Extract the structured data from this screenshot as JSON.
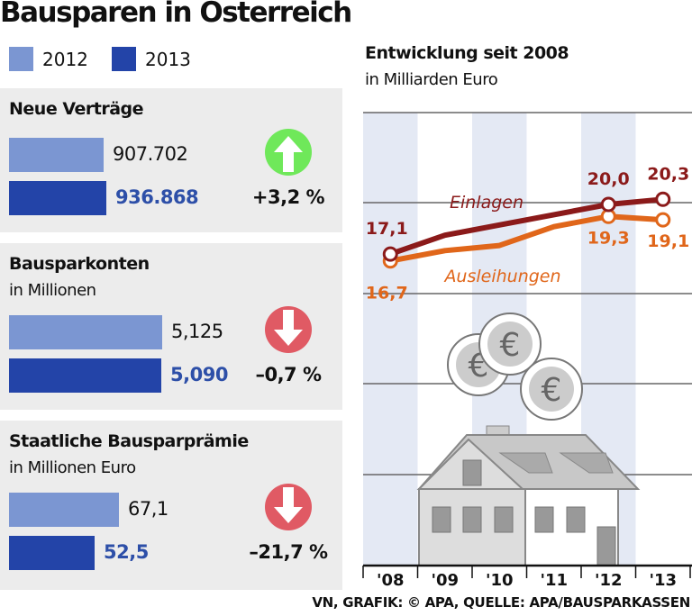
{
  "title": "Bausparen in Österreich",
  "legend": [
    {
      "label": "2012",
      "color": "#7b96d2"
    },
    {
      "label": "2013",
      "color": "#2344a8"
    }
  ],
  "panels": [
    {
      "heading": "Neue Verträge",
      "subtitle": "",
      "v2012": 907702,
      "v2013": 936868,
      "label2012": "907.702",
      "label2013": "936.868",
      "change": "+3,2 %",
      "direction": "up",
      "arrow_color": "#6fe85a"
    },
    {
      "heading": "Bausparkonten",
      "subtitle": "in Millionen",
      "v2012": 5.125,
      "v2013": 5.09,
      "label2012": "5,125",
      "label2013": "5,090",
      "change": "–0,7 %",
      "direction": "down",
      "arrow_color": "#e05a64"
    },
    {
      "heading": "Staatliche Bausparprämie",
      "subtitle": "in Millionen Euro",
      "v2012": 67.1,
      "v2013": 52.5,
      "label2012": "67,1",
      "label2013": "52,5",
      "change": "–21,7 %",
      "direction": "down",
      "arrow_color": "#e05a64"
    }
  ],
  "chart_data": {
    "type": "line",
    "title": "Entwicklung seit 2008",
    "subtitle": "in Milliarden Euro",
    "categories": [
      "'08",
      "'09",
      "'10",
      "'11",
      "'12",
      "'13"
    ],
    "series": [
      {
        "name": "Einlagen",
        "color": "#8b1a1a",
        "values": [
          17.1,
          18.2,
          18.8,
          19.4,
          20.0,
          20.3
        ],
        "labels": {
          "0": "17,1",
          "4": "20,0",
          "5": "20,3"
        }
      },
      {
        "name": "Ausleihungen",
        "color": "#e0661a",
        "values": [
          16.7,
          17.3,
          17.6,
          18.7,
          19.3,
          19.1
        ],
        "labels": {
          "0": "16,7",
          "4": "19,3",
          "5": "19,1"
        }
      }
    ],
    "grid": true
  },
  "source": "VN, GRAFIK: © APA, QUELLE: APA/BAUSPARKASSEN"
}
